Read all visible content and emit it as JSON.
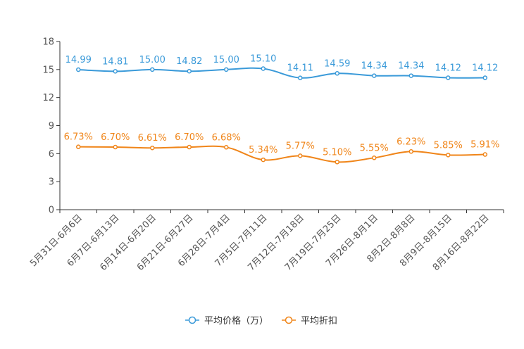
{
  "chart_data": {
    "type": "line",
    "categories": [
      "5月31日-6月6日",
      "6月7日-6月13日",
      "6月14日-6月20日",
      "6月21日-6月27日",
      "6月28日-7月4日",
      "7月5日-7月11日",
      "7月12日-7月18日",
      "7月19日-7月25日",
      "7月26日-8月1日",
      "8月2日-8月8日",
      "8月9日-8月15日",
      "8月16日-8月22日"
    ],
    "ylim": [
      0,
      18
    ],
    "yticks": [
      0,
      3,
      6,
      9,
      12,
      15,
      18
    ],
    "series": [
      {
        "name": "平均价格（万）",
        "color": "#3a9ad9",
        "values": [
          14.99,
          14.81,
          15.0,
          14.82,
          15.0,
          15.1,
          14.11,
          14.59,
          14.34,
          14.34,
          14.12,
          14.12
        ],
        "labels": [
          "14.99",
          "14.81",
          "15.00",
          "14.82",
          "15.00",
          "15.10",
          "14.11",
          "14.59",
          "14.34",
          "14.34",
          "14.12",
          "14.12"
        ]
      },
      {
        "name": "平均折扣",
        "color": "#f08519",
        "values": [
          6.73,
          6.7,
          6.61,
          6.7,
          6.68,
          5.34,
          5.77,
          5.1,
          5.55,
          6.23,
          5.85,
          5.91
        ],
        "labels": [
          "6.73%",
          "6.70%",
          "6.61%",
          "6.70%",
          "6.68%",
          "5.34%",
          "5.77%",
          "5.10%",
          "5.55%",
          "6.23%",
          "5.85%",
          "5.91%"
        ]
      }
    ],
    "legend_position": "bottom-center"
  }
}
